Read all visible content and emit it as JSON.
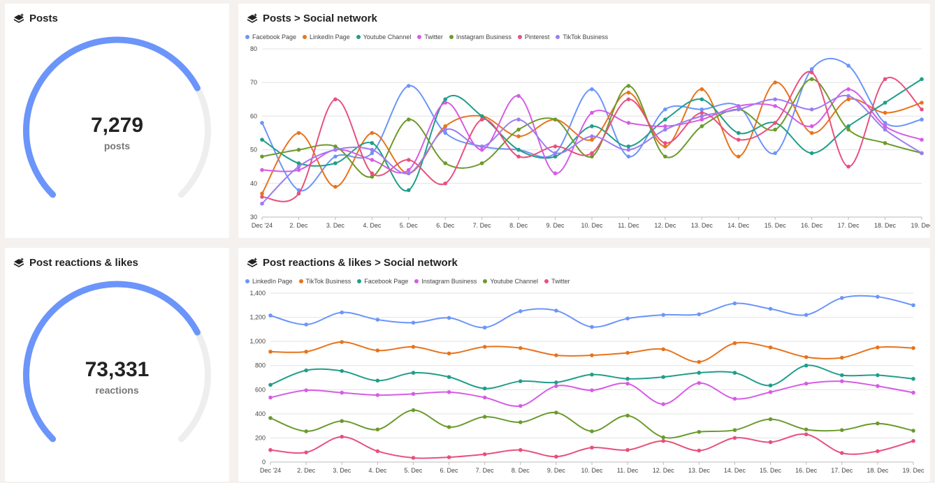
{
  "cards": {
    "posts_kpi": {
      "title": "Posts",
      "value": "7,279",
      "label": "posts",
      "icon": "layers-icon",
      "gauge_fraction": 0.73
    },
    "posts_chart": {
      "title": "Posts > Social network",
      "icon": "layers-icon"
    },
    "reactions_kpi": {
      "title": "Post reactions & likes",
      "value": "73,331",
      "label": "reactions",
      "icon": "layers-icon",
      "gauge_fraction": 0.73
    },
    "reactions_chart": {
      "title": "Post reactions & likes > Social network",
      "icon": "layers-icon"
    }
  },
  "colors": {
    "gauge": "#6b95fa",
    "card_bg": "#ffffff",
    "page_bg": "#f4f1ef",
    "grid": "#e3e3e3"
  },
  "chart_data": [
    {
      "id": "posts",
      "type": "line",
      "title": "Posts > Social network",
      "xlabel": "",
      "ylabel": "",
      "ylim": [
        30,
        80
      ],
      "yticks": [
        30,
        40,
        50,
        60,
        70,
        80
      ],
      "ytick_labels": [
        "30",
        "40",
        "50",
        "60",
        "70",
        "80"
      ],
      "grid": true,
      "legend_position": "top-left",
      "categories": [
        "Dec '24",
        "2. Dec",
        "3. Dec",
        "4. Dec",
        "5. Dec",
        "6. Dec",
        "7. Dec",
        "8. Dec",
        "9. Dec",
        "10. Dec",
        "11. Dec",
        "12. Dec",
        "13. Dec",
        "14. Dec",
        "15. Dec",
        "16. Dec",
        "17. Dec",
        "18. Dec",
        "19. Dec"
      ],
      "series": [
        {
          "name": "Facebook Page",
          "color": "#6b95fa",
          "values": [
            58,
            38,
            48,
            49,
            69,
            55,
            51,
            50,
            49,
            68,
            48,
            62,
            62,
            63,
            49,
            74,
            75,
            58,
            59
          ]
        },
        {
          "name": "LinkedIn Page",
          "color": "#e8731c",
          "values": [
            37,
            55,
            39,
            55,
            43,
            57,
            60,
            54,
            59,
            53,
            67,
            51,
            68,
            48,
            70,
            55,
            65,
            61,
            64
          ]
        },
        {
          "name": "Youtube Channel",
          "color": "#1f9e89",
          "values": [
            53,
            46,
            46,
            52,
            38,
            65,
            60,
            50,
            48,
            57,
            51,
            59,
            65,
            55,
            58,
            49,
            57,
            64,
            71
          ]
        },
        {
          "name": "Twitter",
          "color": "#d65ce6",
          "values": [
            44,
            44,
            50,
            47,
            44,
            64,
            50,
            66,
            43,
            61,
            58,
            57,
            59,
            63,
            63,
            57,
            68,
            57,
            53
          ]
        },
        {
          "name": "Instagram Business",
          "color": "#6c9a2c",
          "values": [
            48,
            50,
            51,
            42,
            59,
            46,
            46,
            56,
            59,
            48,
            69,
            48,
            57,
            62,
            56,
            71,
            56,
            52,
            49
          ]
        },
        {
          "name": "Pinterest",
          "color": "#e8507d",
          "values": [
            36,
            37,
            65,
            43,
            47,
            40,
            59,
            48,
            51,
            49,
            65,
            52,
            61,
            53,
            58,
            73,
            45,
            71,
            62
          ]
        },
        {
          "name": "TikTok Business",
          "color": "#9c7df0",
          "values": [
            34,
            45,
            50,
            50,
            43,
            56,
            51,
            59,
            49,
            54,
            50,
            56,
            60,
            62,
            65,
            62,
            66,
            56,
            49
          ]
        }
      ]
    },
    {
      "id": "reactions",
      "type": "line",
      "title": "Post reactions & likes > Social network",
      "xlabel": "",
      "ylabel": "",
      "ylim": [
        0,
        1400
      ],
      "yticks": [
        0,
        200,
        400,
        600,
        800,
        1000,
        1200,
        1400
      ],
      "ytick_labels": [
        "0",
        "200",
        "400",
        "600",
        "800",
        "1,000",
        "1,200",
        "1,400"
      ],
      "grid": true,
      "legend_position": "top-left",
      "categories": [
        "Dec '24",
        "2. Dec",
        "3. Dec",
        "4. Dec",
        "5. Dec",
        "6. Dec",
        "7. Dec",
        "8. Dec",
        "9. Dec",
        "10. Dec",
        "11. Dec",
        "12. Dec",
        "13. Dec",
        "14. Dec",
        "15. Dec",
        "16. Dec",
        "17. Dec",
        "18. Dec",
        "19. Dec"
      ],
      "series": [
        {
          "name": "LinkedIn Page",
          "color": "#6b95fa",
          "values": [
            1215,
            1140,
            1240,
            1180,
            1155,
            1195,
            1115,
            1250,
            1255,
            1120,
            1190,
            1220,
            1225,
            1315,
            1270,
            1220,
            1360,
            1370,
            1300
          ]
        },
        {
          "name": "TikTok Business",
          "color": "#e8731c",
          "values": [
            915,
            915,
            995,
            925,
            955,
            900,
            955,
            945,
            885,
            885,
            905,
            935,
            830,
            985,
            950,
            870,
            865,
            950,
            945
          ]
        },
        {
          "name": "Facebook Page",
          "color": "#1f9e89",
          "values": [
            640,
            760,
            755,
            675,
            740,
            705,
            610,
            670,
            660,
            725,
            690,
            705,
            740,
            740,
            635,
            800,
            720,
            720,
            690
          ]
        },
        {
          "name": "Instagram Business",
          "color": "#d65ce6",
          "values": [
            535,
            595,
            575,
            555,
            565,
            580,
            535,
            465,
            630,
            595,
            650,
            480,
            655,
            525,
            580,
            650,
            670,
            630,
            575
          ]
        },
        {
          "name": "Youtube Channel",
          "color": "#6c9a2c",
          "values": [
            365,
            255,
            340,
            270,
            430,
            290,
            375,
            330,
            410,
            255,
            385,
            205,
            250,
            265,
            355,
            270,
            265,
            320,
            260
          ]
        },
        {
          "name": "Twitter",
          "color": "#e8507d",
          "values": [
            100,
            80,
            210,
            90,
            35,
            40,
            65,
            100,
            45,
            120,
            100,
            175,
            95,
            200,
            165,
            230,
            75,
            90,
            175
          ]
        }
      ]
    }
  ]
}
